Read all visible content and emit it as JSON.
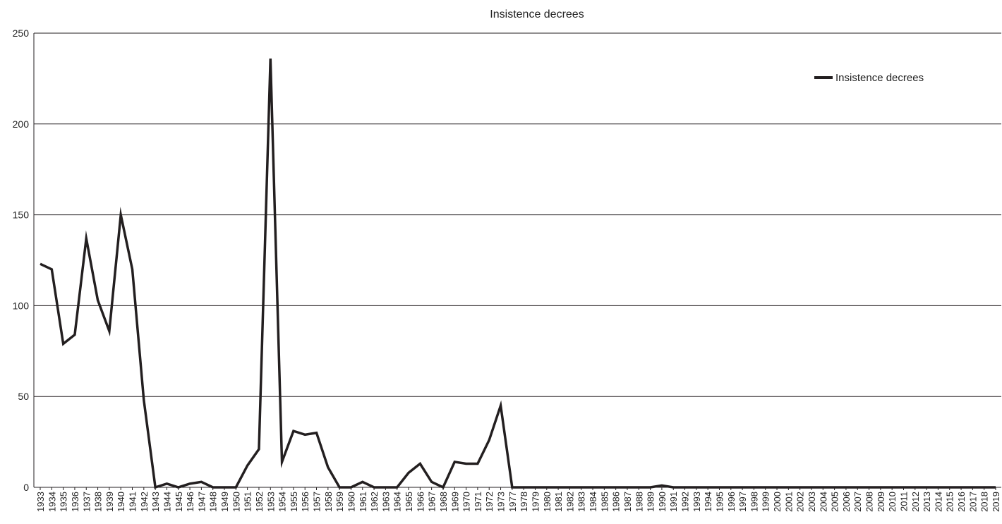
{
  "chart_data": {
    "type": "line",
    "title": "Insistence decrees",
    "xlabel": "",
    "ylabel": "",
    "ylim": [
      0,
      250
    ],
    "yticks": [
      "0",
      "50",
      "100",
      "150",
      "200",
      "250"
    ],
    "grid": "horizontal",
    "legend_position": "top-right",
    "categories": [
      "1933",
      "1934",
      "1935",
      "1936",
      "1937",
      "1938",
      "1939",
      "1940",
      "1941",
      "1942",
      "1943",
      "1944",
      "1945",
      "1946",
      "1947",
      "1948",
      "1949",
      "1950",
      "1951",
      "1952",
      "1953",
      "1954",
      "1955",
      "1956",
      "1957",
      "1958",
      "1959",
      "1960",
      "1961",
      "1962",
      "1963",
      "1964",
      "1965",
      "1966",
      "1967",
      "1968",
      "1969",
      "1970",
      "1971",
      "1972",
      "1973",
      "1977",
      "1978",
      "1979",
      "1980",
      "1981",
      "1982",
      "1983",
      "1984",
      "1985",
      "1986",
      "1987",
      "1988",
      "1989",
      "1990",
      "1991",
      "1992",
      "1993",
      "1994",
      "1995",
      "1996",
      "1997",
      "1998",
      "1999",
      "2000",
      "2001",
      "2002",
      "2003",
      "2004",
      "2005",
      "2006",
      "2007",
      "2008",
      "2009",
      "2010",
      "2011",
      "2012",
      "2013",
      "2014",
      "2015",
      "2016",
      "2017",
      "2018",
      "2019"
    ],
    "series": [
      {
        "name": "Insistence decrees",
        "color": "#231f20",
        "values": [
          123,
          120,
          79,
          84,
          137,
          103,
          86,
          150,
          120,
          48,
          0,
          2,
          0,
          2,
          3,
          0,
          0,
          0,
          12,
          21,
          236,
          14,
          31,
          29,
          30,
          11,
          0,
          0,
          3,
          0,
          0,
          0,
          8,
          13,
          3,
          0,
          14,
          13,
          13,
          26,
          45,
          0,
          0,
          0,
          0,
          0,
          0,
          0,
          0,
          0,
          0,
          0,
          0,
          0,
          1,
          0,
          0,
          0,
          0,
          0,
          0,
          0,
          0,
          0,
          0,
          0,
          0,
          0,
          0,
          0,
          0,
          0,
          0,
          0,
          0,
          0,
          0,
          0,
          0,
          0,
          0,
          0,
          0,
          0
        ]
      }
    ]
  }
}
